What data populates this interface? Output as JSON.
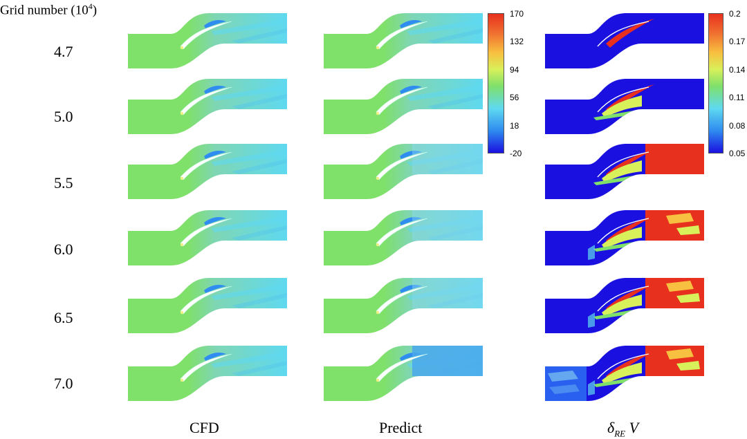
{
  "title": {
    "text": "Grid number (10",
    "sup": "4",
    "close": ")"
  },
  "rows": [
    "4.7",
    "5.0",
    "5.5",
    "6.0",
    "6.5",
    "7.0"
  ],
  "columns": {
    "cfd": "CFD",
    "predict": "Predict",
    "error": {
      "delta": "δ",
      "sub": "RE",
      "var": " V"
    }
  },
  "colorbar_velocity": {
    "ticks": [
      "170",
      "132",
      "94",
      "56",
      "18",
      "-20"
    ]
  },
  "colorbar_error": {
    "ticks": [
      "0.2",
      "0.17",
      "0.14",
      "0.11",
      "0.08",
      "0.05"
    ]
  },
  "colormap": [
    "#1a10e0",
    "#2f8cf0",
    "#5fd9f0",
    "#7fe06a",
    "#d8f05a",
    "#f8c040",
    "#f07030",
    "#e8301e"
  ]
}
